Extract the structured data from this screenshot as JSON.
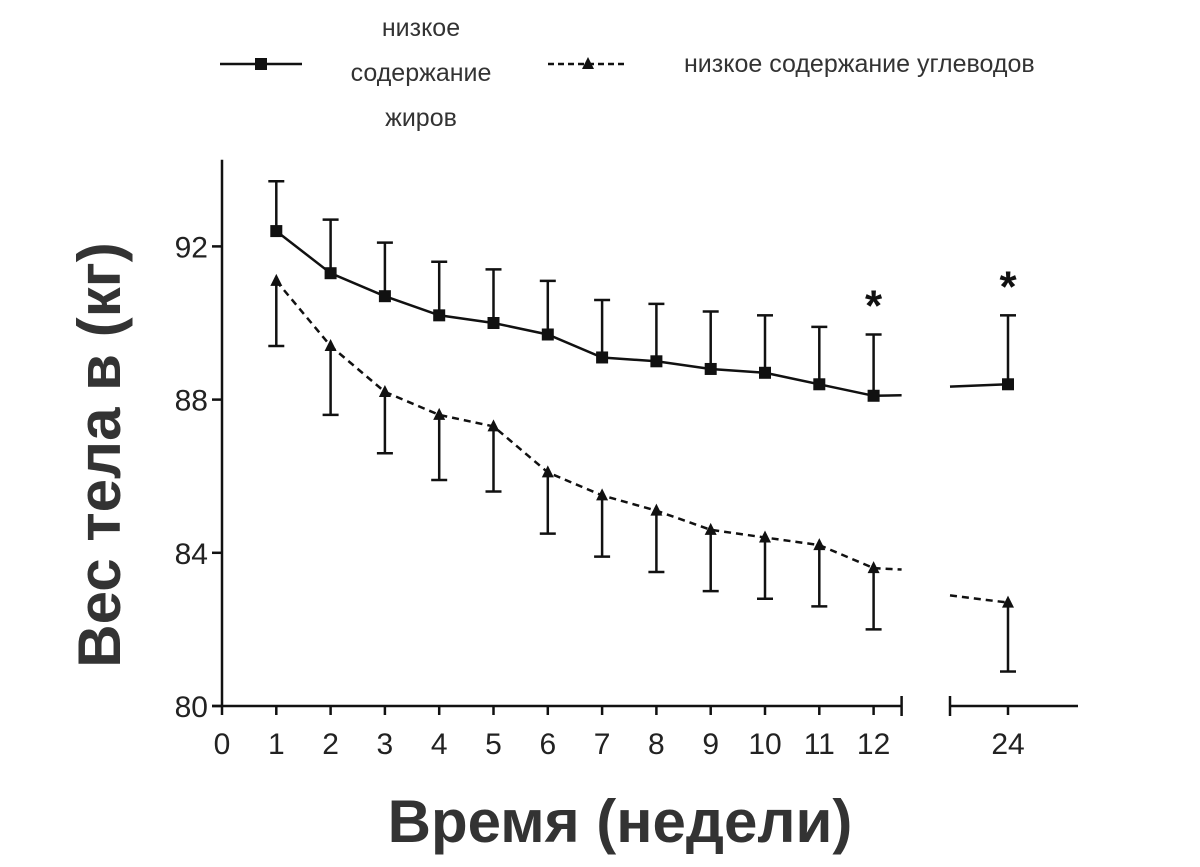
{
  "chart_data": {
    "type": "line",
    "title": "",
    "xlabel": "Время (недели)",
    "ylabel": "Вес тела в (кг)",
    "ylim": [
      80,
      94
    ],
    "yticks": [
      80,
      84,
      88,
      92
    ],
    "xticks": [
      0,
      1,
      2,
      3,
      4,
      5,
      6,
      7,
      8,
      9,
      10,
      11,
      12,
      24
    ],
    "axis_break": "between 12 and 24",
    "legend_placement": "top",
    "grid": false,
    "series": [
      {
        "name": "низкое содержание жиров",
        "name_lines": [
          "низкое",
          "содержание",
          "жиров"
        ],
        "style": "solid",
        "marker": "square",
        "color": "#111111",
        "x": [
          1,
          2,
          3,
          4,
          5,
          6,
          7,
          8,
          9,
          10,
          11,
          12,
          24
        ],
        "values": [
          92.4,
          91.3,
          90.7,
          90.2,
          90.0,
          89.7,
          89.1,
          89.0,
          88.8,
          88.7,
          88.4,
          88.1,
          88.4
        ],
        "error_upper": [
          93.7,
          92.7,
          92.1,
          91.6,
          91.4,
          91.1,
          90.6,
          90.5,
          90.3,
          90.2,
          89.9,
          89.7,
          90.2
        ]
      },
      {
        "name": "низкое содержание углеводов",
        "style": "dashed",
        "marker": "triangle",
        "color": "#111111",
        "x": [
          1,
          2,
          3,
          4,
          5,
          6,
          7,
          8,
          9,
          10,
          11,
          12,
          24
        ],
        "values": [
          91.1,
          89.4,
          88.2,
          87.6,
          87.3,
          86.1,
          85.5,
          85.1,
          84.6,
          84.4,
          84.2,
          83.6,
          82.7
        ],
        "error_lower": [
          89.4,
          87.6,
          86.6,
          85.9,
          85.6,
          84.5,
          83.9,
          83.5,
          83.0,
          82.8,
          82.6,
          82.0,
          80.9
        ]
      }
    ],
    "annotations": [
      {
        "text": "*",
        "x": 12
      },
      {
        "text": "*",
        "x": 24
      }
    ]
  }
}
